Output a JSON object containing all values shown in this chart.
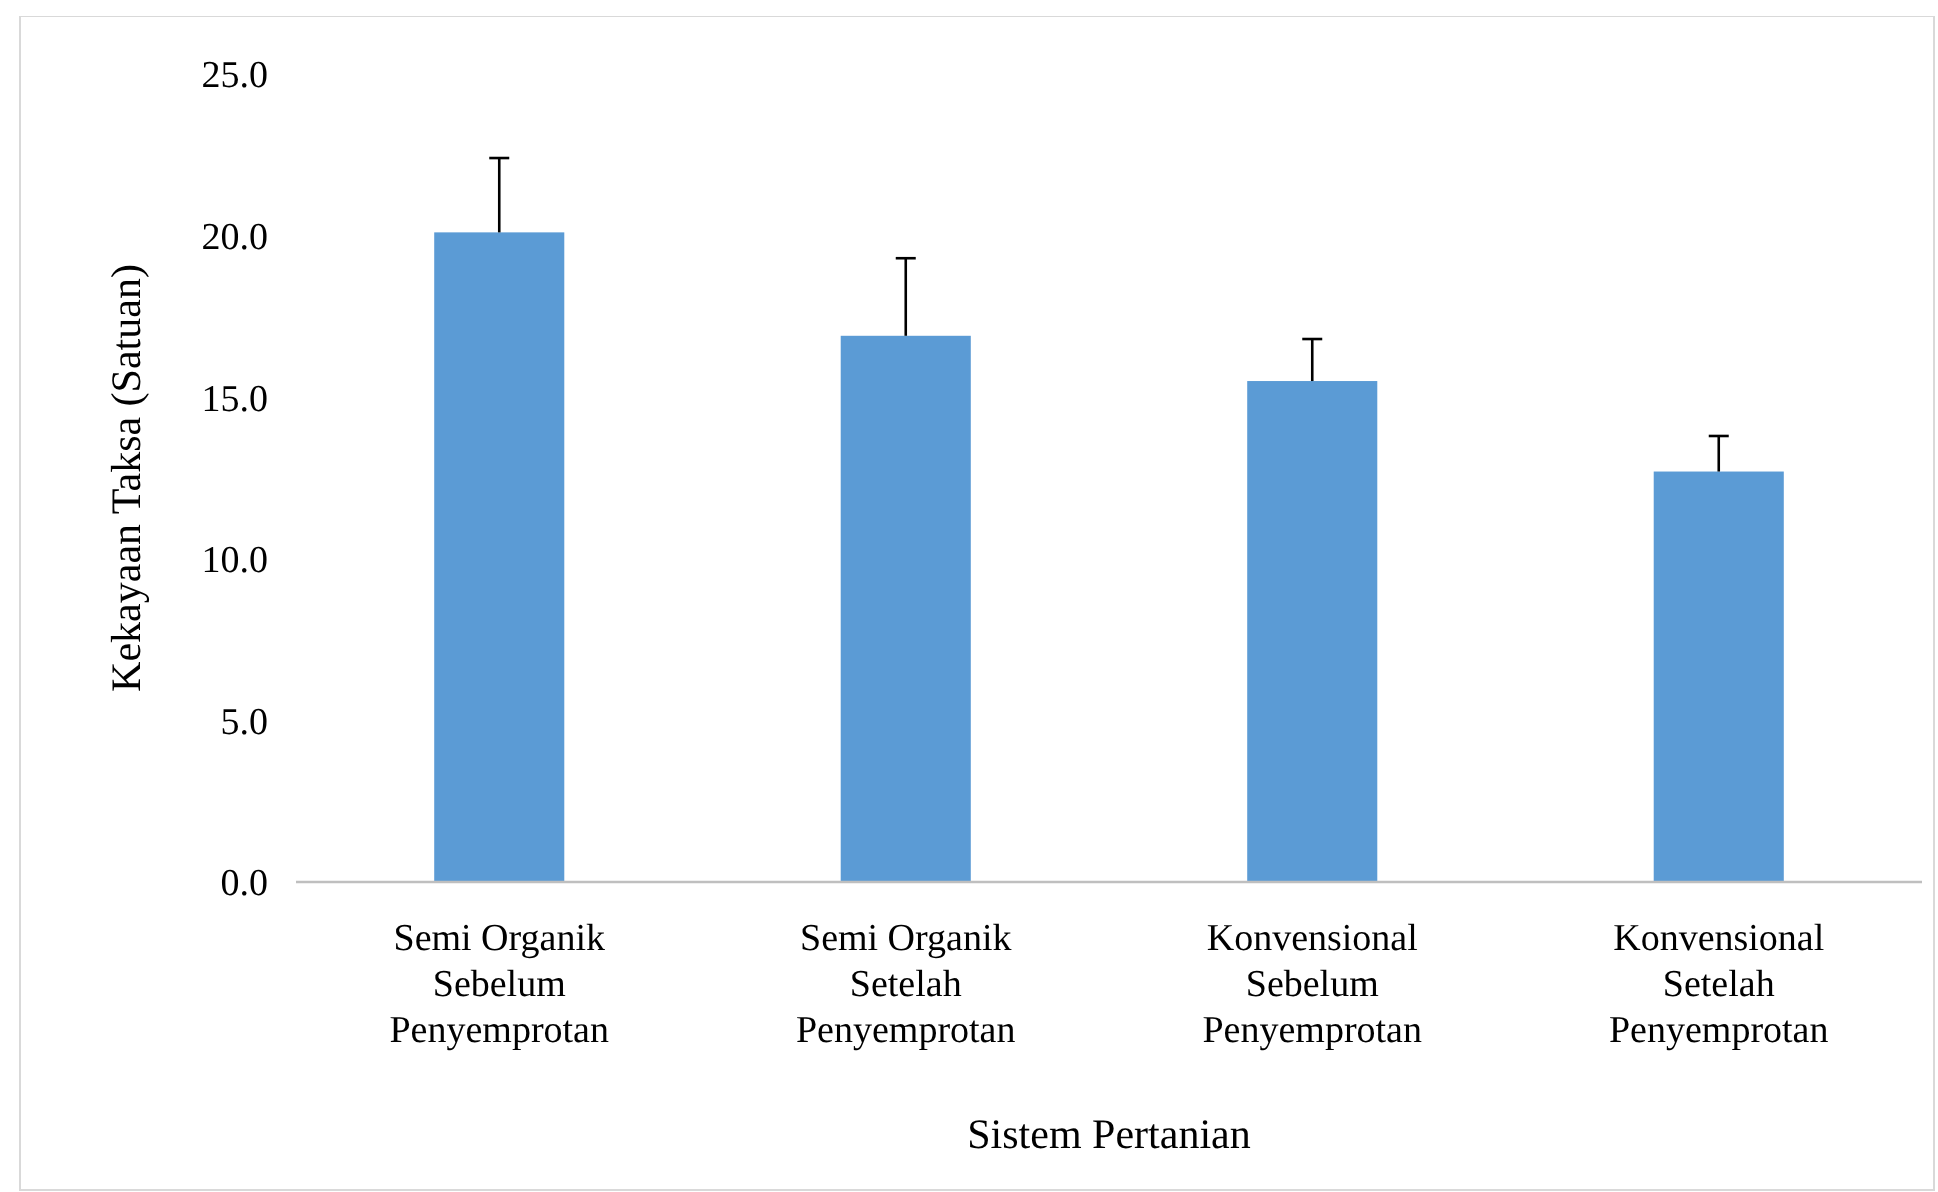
{
  "chart_data": {
    "type": "bar",
    "xlabel": "Sistem Pertanian",
    "ylabel": "Kekayaan Taksa (Satuan)",
    "categories": [
      "Semi Organik Sebelum Penyemprotan",
      "Semi Organik Setelah Penyemprotan",
      "Konvensional Sebelum Penyemprotan",
      "Konvensional Setelah Penyemprotan"
    ],
    "values": [
      20.1,
      16.9,
      15.5,
      12.7
    ],
    "errors": [
      2.3,
      2.4,
      1.3,
      1.1
    ],
    "color": "#5b9bd5",
    "ylim": [
      0,
      25
    ],
    "yticks": [
      {
        "value": 0,
        "label": "0.0"
      },
      {
        "value": 5,
        "label": "5.0"
      },
      {
        "value": 10,
        "label": "10.0"
      },
      {
        "value": 15,
        "label": "15.0"
      },
      {
        "value": 20,
        "label": "20.0"
      },
      {
        "value": 25,
        "label": "25.0"
      }
    ],
    "grid": false
  }
}
